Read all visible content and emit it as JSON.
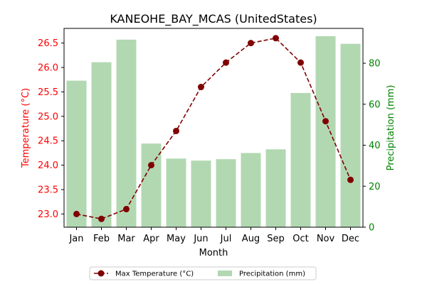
{
  "chart_data": {
    "type": "bar+line",
    "title": "KANEOHE_BAY_MCAS (UnitedStates)",
    "xlabel": "Month",
    "categories": [
      "Jan",
      "Feb",
      "Mar",
      "Apr",
      "May",
      "Jun",
      "Jul",
      "Aug",
      "Sep",
      "Oct",
      "Nov",
      "Dec"
    ],
    "left_axis": {
      "label": "Temperature (°C)",
      "color": "#ff0000",
      "ylim": [
        22.73,
        26.8
      ],
      "ticks": [
        23.0,
        23.5,
        24.0,
        24.5,
        25.0,
        25.5,
        26.0,
        26.5
      ],
      "tick_labels": [
        "23.0",
        "23.5",
        "24.0",
        "24.5",
        "25.0",
        "25.5",
        "26.0",
        "26.5"
      ]
    },
    "right_axis": {
      "label": "Precipitation (mm)",
      "color": "#008000",
      "ylim": [
        0,
        97
      ],
      "ticks": [
        0,
        20,
        40,
        60,
        80
      ],
      "tick_labels": [
        "0",
        "20",
        "40",
        "60",
        "80"
      ]
    },
    "series": [
      {
        "name": "Max Temperature (°C)",
        "type": "line",
        "axis": "left",
        "color": "#800000",
        "values": [
          23.0,
          22.9,
          23.1,
          24.0,
          24.7,
          25.6,
          26.1,
          26.5,
          26.6,
          26.1,
          24.9,
          23.7
        ]
      },
      {
        "name": "Precipitation (mm)",
        "type": "bar",
        "axis": "right",
        "color": "#b2d8b2",
        "values": [
          71.5,
          80.5,
          91.5,
          40.8,
          33.5,
          32.5,
          33.2,
          36.2,
          38.0,
          65.5,
          93.2,
          89.5
        ]
      }
    ],
    "legend": {
      "placement": "bottom-center"
    }
  }
}
